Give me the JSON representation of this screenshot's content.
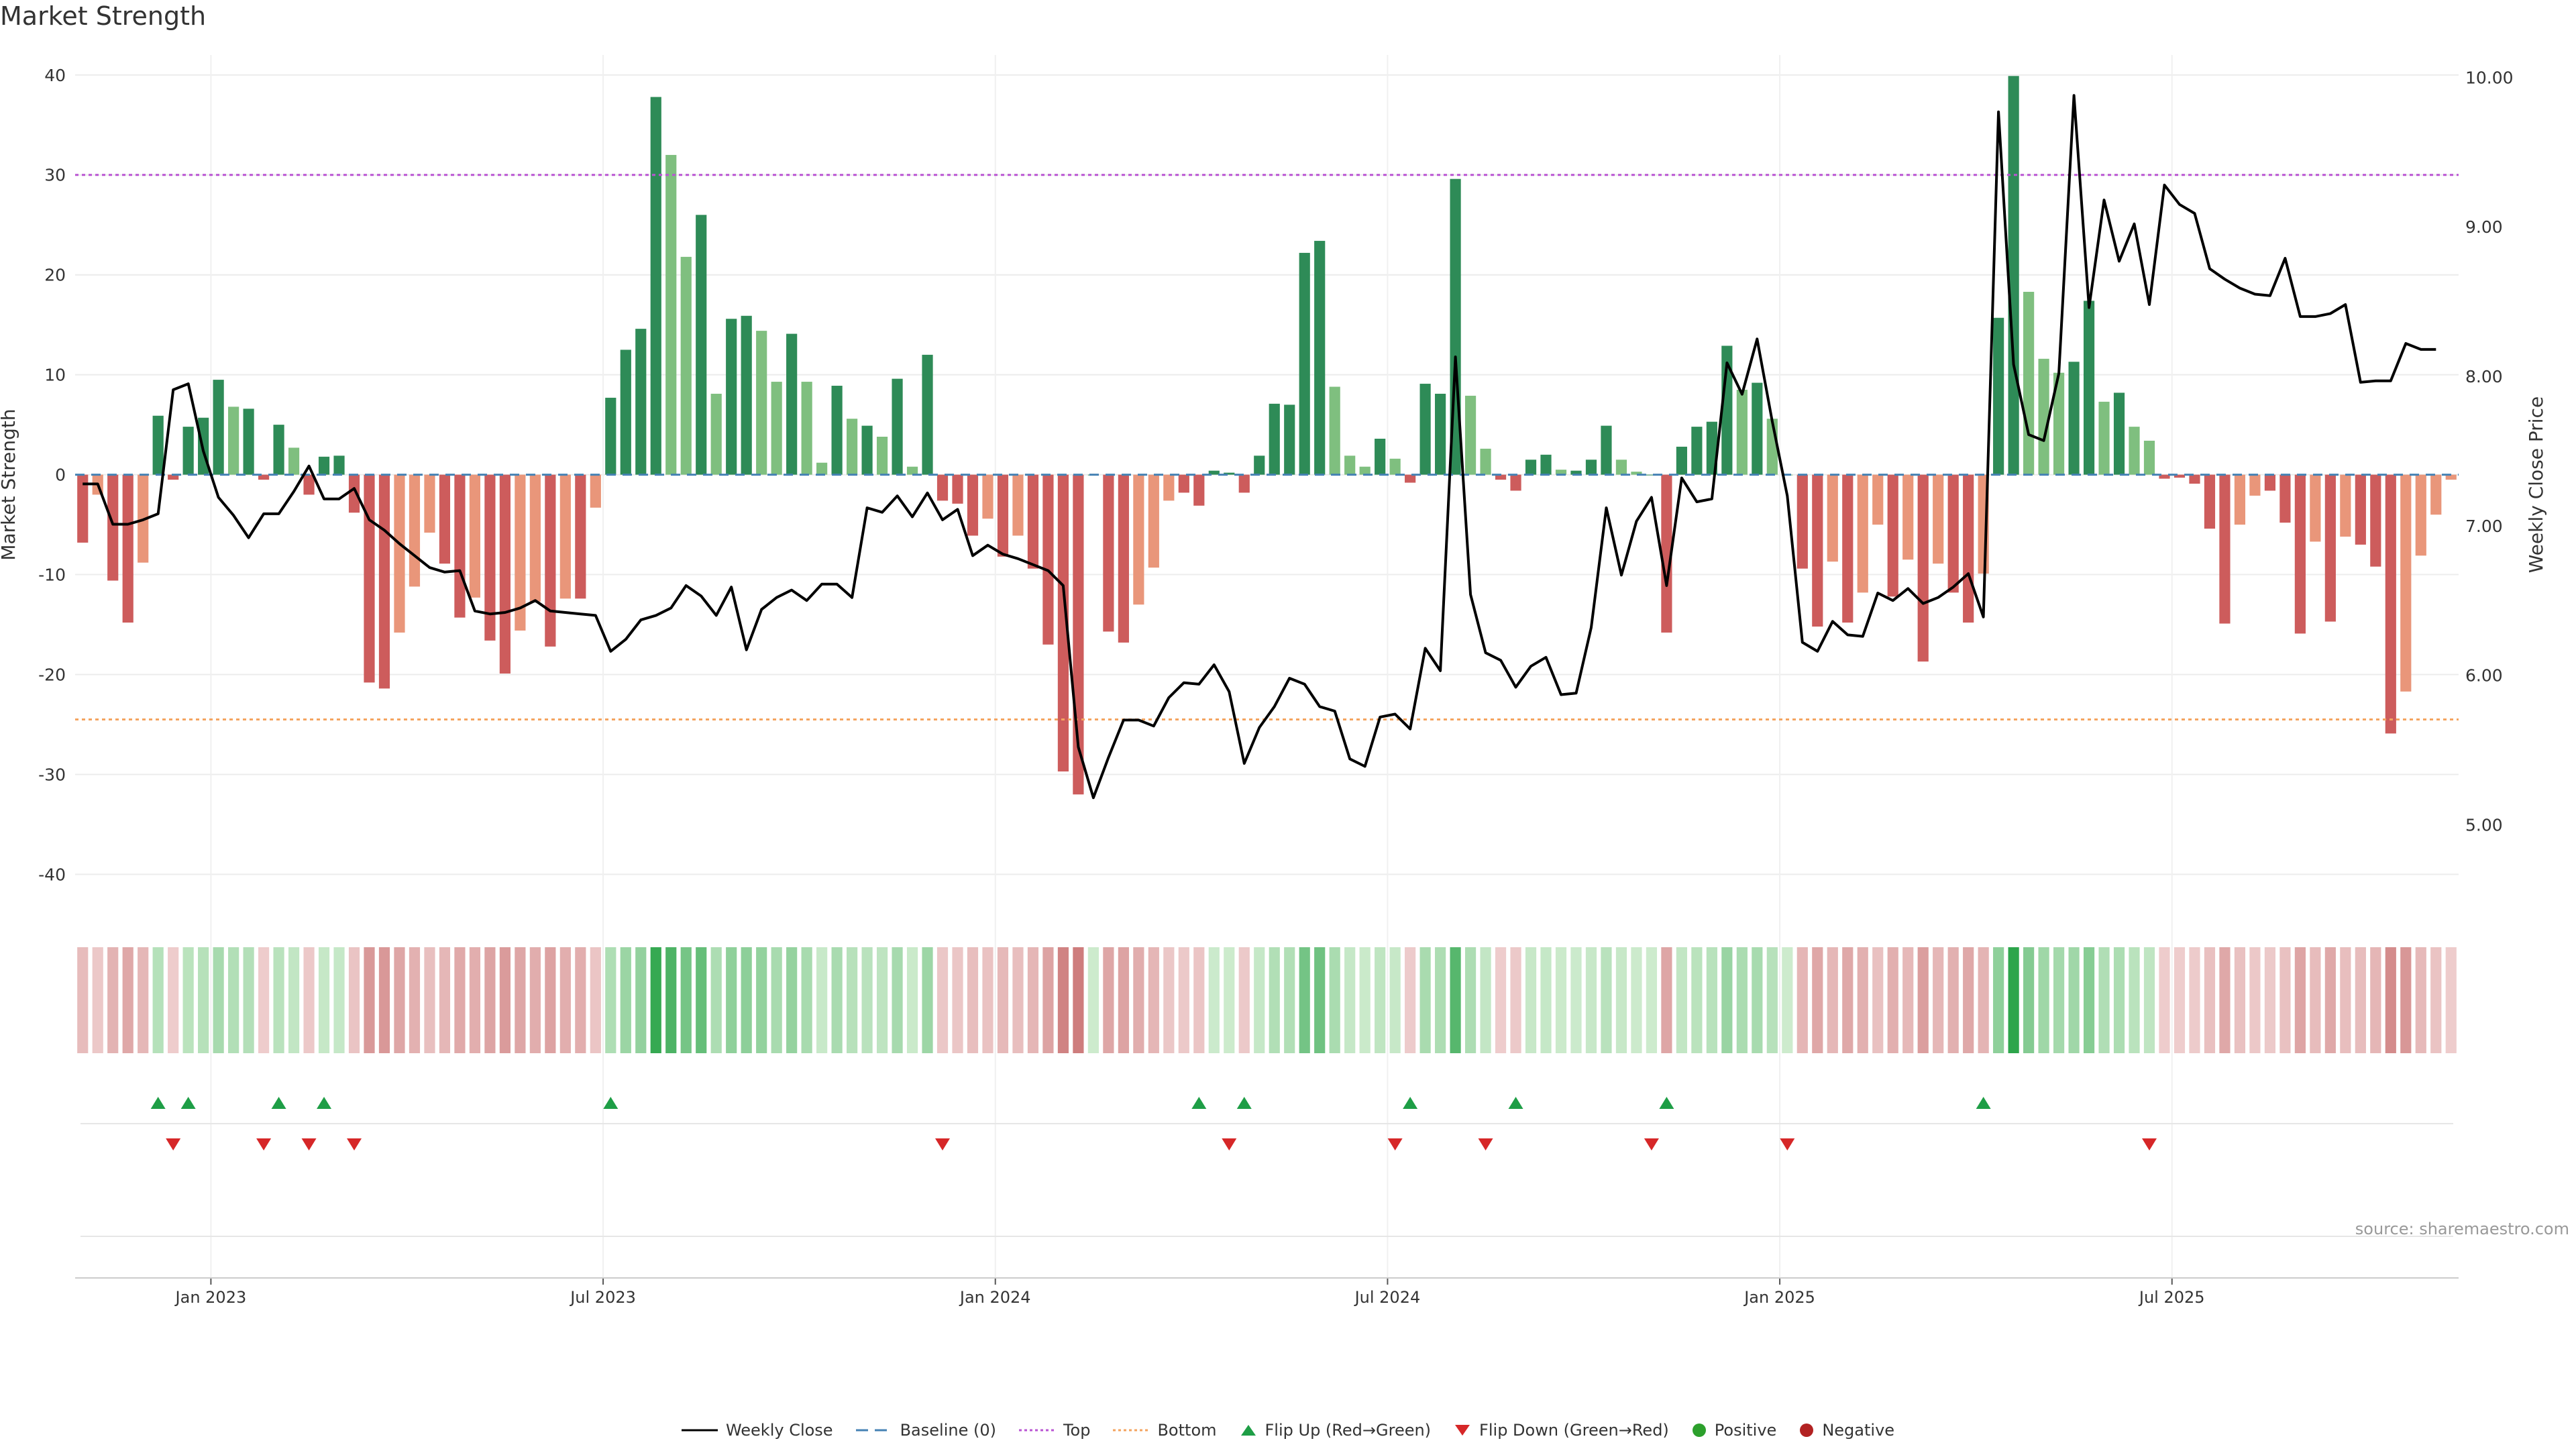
{
  "title": "Market Strength",
  "source": "source: sharemaestro.com",
  "chart_data": {
    "type": "bar+line",
    "title": "Market Strength",
    "ylabel_left": "Market Strength",
    "ylabel_right": "Weekly Close Price",
    "ylim_left": [
      -44,
      42
    ],
    "ylim_right": [
      4.4,
      10.15
    ],
    "yticks_left": [
      40,
      30,
      20,
      10,
      0,
      -10,
      -20,
      -30,
      -40
    ],
    "yticks_right": [
      "10.00",
      "9.00",
      "8.00",
      "7.00",
      "6.00",
      "5.00"
    ],
    "xticks": [
      "Jan 2023",
      "Jul 2023",
      "Jan 2024",
      "Jul 2024",
      "Jan 2025",
      "Jul 2025"
    ],
    "xtick_positions": [
      9,
      35,
      61,
      87,
      113,
      139
    ],
    "top_line": 30,
    "bottom_line": -24.5,
    "baseline": 0,
    "strength": [
      -6.8,
      -2.0,
      -10.6,
      -14.8,
      -8.8,
      5.9,
      -0.5,
      4.8,
      5.7,
      9.5,
      6.8,
      6.6,
      -0.5,
      5.0,
      2.7,
      -2.0,
      1.8,
      1.9,
      -3.8,
      -20.8,
      -21.4,
      -15.8,
      -11.2,
      -5.8,
      -8.9,
      -14.3,
      -12.3,
      -16.6,
      -19.9,
      -15.6,
      -12.7,
      -17.2,
      -12.4,
      -12.4,
      -3.3,
      7.7,
      12.5,
      14.6,
      37.8,
      32.0,
      21.8,
      26.0,
      8.1,
      15.6,
      15.9,
      14.4,
      9.3,
      14.1,
      9.3,
      1.2,
      8.9,
      5.6,
      4.9,
      3.8,
      9.6,
      0.8,
      12.0,
      -2.6,
      -2.9,
      -6.1,
      -4.4,
      -8.2,
      -6.1,
      -9.4,
      -17.0,
      -29.7,
      -32.0,
      0,
      -15.7,
      -16.8,
      -13.0,
      -9.3,
      -2.6,
      -1.8,
      -3.1,
      0.4,
      0.2,
      -1.8,
      1.9,
      7.1,
      7.0,
      22.2,
      23.4,
      8.8,
      1.9,
      0.8,
      3.6,
      1.6,
      -0.8,
      9.1,
      8.1,
      29.6,
      7.9,
      2.6,
      -0.5,
      -1.6,
      1.5,
      2.0,
      0.5,
      0.4,
      1.5,
      4.9,
      1.5,
      0.3,
      0.0,
      -15.8,
      2.8,
      4.8,
      5.3,
      12.9,
      8.5,
      9.2,
      5.6,
      0,
      -9.4,
      -15.2,
      -8.7,
      -14.8,
      -11.8,
      -5.0,
      -12.2,
      -8.5,
      -18.7,
      -8.9,
      -11.8,
      -14.8,
      -9.9,
      15.7,
      39.9,
      18.3,
      11.6,
      10.2,
      11.3,
      17.4,
      7.3,
      8.2,
      4.8,
      3.4,
      -0.4,
      -0.3,
      -0.9,
      -5.4,
      -14.9,
      -5.0,
      -2.1,
      -1.6,
      -4.8,
      -15.9,
      -6.7,
      -14.7,
      -6.2,
      -7.0,
      -9.2,
      -25.9,
      -21.7,
      -8.1,
      -4.0,
      -0.5
    ],
    "weekly_close": [
      7.28,
      7.28,
      7.01,
      7.01,
      7.04,
      7.08,
      7.91,
      7.95,
      7.5,
      7.19,
      7.07,
      6.92,
      7.08,
      7.08,
      7.23,
      7.4,
      7.18,
      7.18,
      7.25,
      7.04,
      6.97,
      6.88,
      6.8,
      6.72,
      6.69,
      6.7,
      6.43,
      6.41,
      6.42,
      6.45,
      6.5,
      6.43,
      6.42,
      6.41,
      6.4,
      6.16,
      6.24,
      6.37,
      6.4,
      6.45,
      6.6,
      6.53,
      6.4,
      6.59,
      6.17,
      6.44,
      6.52,
      6.57,
      6.5,
      6.61,
      6.61,
      6.52,
      7.12,
      7.09,
      7.2,
      7.06,
      7.22,
      7.04,
      7.11,
      6.8,
      6.87,
      6.81,
      6.78,
      6.74,
      6.7,
      6.6,
      5.52,
      5.18,
      5.45,
      5.7,
      5.7,
      5.66,
      5.85,
      5.95,
      5.94,
      6.07,
      5.89,
      5.41,
      5.65,
      5.79,
      5.98,
      5.94,
      5.79,
      5.76,
      5.44,
      5.39,
      5.72,
      5.74,
      5.64,
      6.18,
      6.03,
      8.13,
      6.54,
      6.15,
      6.1,
      5.92,
      6.06,
      6.12,
      5.87,
      5.88,
      6.32,
      7.12,
      6.67,
      7.03,
      7.19,
      6.6,
      7.32,
      7.16,
      7.18,
      8.09,
      7.88,
      8.25,
      7.7,
      7.2,
      6.22,
      6.16,
      6.36,
      6.27,
      6.26,
      6.55,
      6.5,
      6.58,
      6.48,
      6.52,
      6.59,
      6.68,
      6.39,
      9.77,
      8.08,
      7.61,
      7.57,
      8.02,
      9.88,
      8.46,
      9.18,
      8.77,
      9.02,
      8.48,
      9.28,
      9.15,
      9.09,
      8.72,
      8.65,
      8.59,
      8.55,
      8.54,
      8.79,
      8.4,
      8.4,
      8.42,
      8.48,
      7.96,
      7.97,
      7.97,
      8.22,
      8.18,
      8.18
    ],
    "flip_up_weeks": [
      5,
      7,
      13,
      16,
      35,
      74,
      77,
      88,
      95,
      105,
      126
    ],
    "flip_down_weeks": [
      6,
      12,
      15,
      18,
      57,
      76,
      87,
      93,
      104,
      113,
      137
    ],
    "legend": [
      "Weekly Close",
      "Baseline (0)",
      "Top",
      "Bottom",
      "Flip Up (Red→Green)",
      "Flip Down (Green→Red)",
      "Positive",
      "Negative"
    ],
    "legend_position": "bottom-center"
  },
  "colors": {
    "pos_dark": "#2e8b57",
    "pos_light": "#7fbf7f",
    "neg_dark": "#cd5c5c",
    "neg_light": "#e9967a",
    "top_line": "#ba55d3",
    "bottom_line": "#f4a460",
    "baseline": "#4682b4",
    "close_line": "#000000",
    "flip_up": "#1e9e46",
    "flip_down": "#d62728",
    "positive_dot": "#2ca02c",
    "negative_dot": "#b22222"
  }
}
